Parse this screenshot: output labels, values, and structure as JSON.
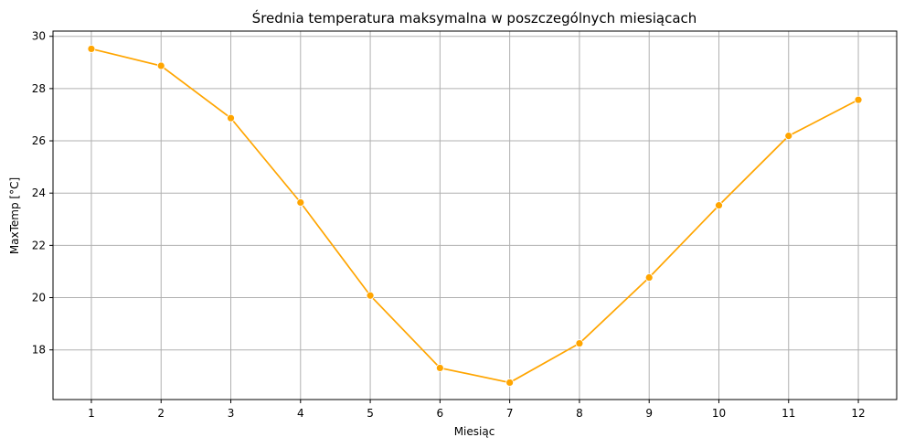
{
  "chart_data": {
    "type": "line",
    "title": "Średnia temperatura maksymalna w poszczególnych miesiącach",
    "xlabel": "Miesiąc",
    "ylabel": "MaxTemp [°C]",
    "x": [
      1,
      2,
      3,
      4,
      5,
      6,
      7,
      8,
      9,
      10,
      11,
      12
    ],
    "series": [
      {
        "values": [
          29.52,
          28.87,
          26.87,
          23.64,
          20.08,
          17.31,
          16.75,
          18.25,
          20.77,
          23.53,
          26.19,
          27.57
        ]
      }
    ],
    "xlim": [
      0.45,
      12.55
    ],
    "ylim": [
      16.1,
      30.2
    ],
    "yticks": [
      18,
      20,
      22,
      24,
      26,
      28,
      30
    ],
    "xticks": [
      1,
      2,
      3,
      4,
      5,
      6,
      7,
      8,
      9,
      10,
      11,
      12
    ],
    "grid": true,
    "markers": true,
    "line_color": "#ffa500"
  }
}
